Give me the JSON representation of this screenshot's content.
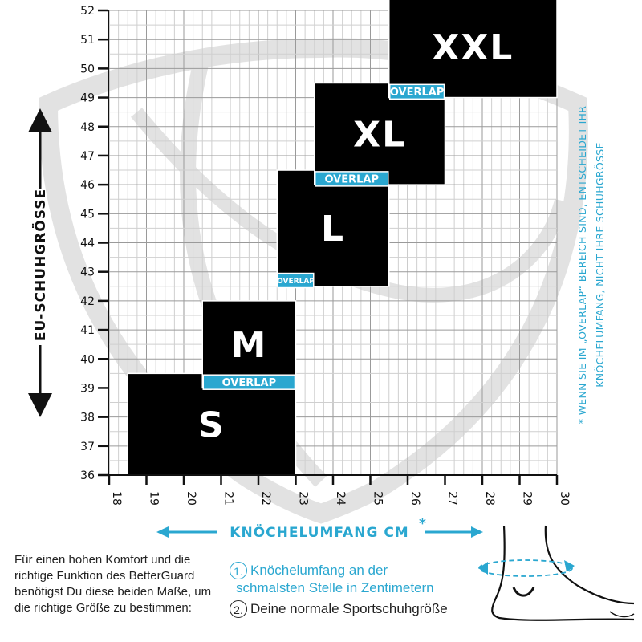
{
  "chart_data": {
    "type": "table",
    "ylabel": "EU-SCHUHGRÖSSE",
    "xlabel": "KNÖCHELUMFANG CM",
    "xlabel_marker": "*",
    "xlim": [
      18,
      30
    ],
    "ylim": [
      36,
      52
    ],
    "x_ticks": [
      18,
      19,
      20,
      21,
      22,
      23,
      24,
      25,
      26,
      27,
      28,
      29,
      30
    ],
    "y_ticks": [
      36,
      37,
      38,
      39,
      40,
      41,
      42,
      43,
      44,
      45,
      46,
      47,
      48,
      49,
      50,
      51,
      52
    ],
    "grid": true,
    "sizes": [
      {
        "label": "S",
        "x_range": [
          18.5,
          23
        ],
        "y_range": [
          36,
          39.5
        ]
      },
      {
        "label": "M",
        "x_range": [
          20.5,
          23
        ],
        "y_range": [
          39,
          42
        ]
      },
      {
        "label": "L",
        "x_range": [
          22.5,
          25.5
        ],
        "y_range": [
          42.5,
          46.5
        ]
      },
      {
        "label": "XL",
        "x_range": [
          23.5,
          27
        ],
        "y_range": [
          46,
          49.5
        ]
      },
      {
        "label": "XXL",
        "x_range": [
          25.5,
          30
        ],
        "y_range": [
          49,
          52.5
        ]
      }
    ],
    "overlap_label": "OVERLAP",
    "overlaps": [
      {
        "x_range": [
          20.5,
          23
        ],
        "y": 39.2
      },
      {
        "x_range": [
          22.5,
          23.5
        ],
        "y": 42.7
      },
      {
        "x_range": [
          23.5,
          25.5
        ],
        "y": 46.2
      },
      {
        "x_range": [
          25.5,
          27
        ],
        "y": 49.2
      }
    ],
    "note": [
      "* WENN SIE IM „OVERLAP“-BEREICH SIND, ENTSCHEIDET IHR",
      "KNÖCHELUMFANG, NICHT IHRE SCHUHGRÖSSE"
    ]
  },
  "description": "Für einen hohen Komfort und die richtige Funktion des BetterGuard benötigst Du diese beiden Maße, um die richtige Größe zu bestimmen:",
  "steps": [
    {
      "num": "1.",
      "line1": "Knöchelumfang an der",
      "line2": "schmalsten Stelle in Zentimetern"
    },
    {
      "num": "2.",
      "line1": "Deine normale Sportschuhgröße"
    }
  ],
  "colors": {
    "accent": "#2aa7d0",
    "box": "#000000",
    "grid": "#bbbbbb",
    "watermark": "#e2e2e2"
  }
}
